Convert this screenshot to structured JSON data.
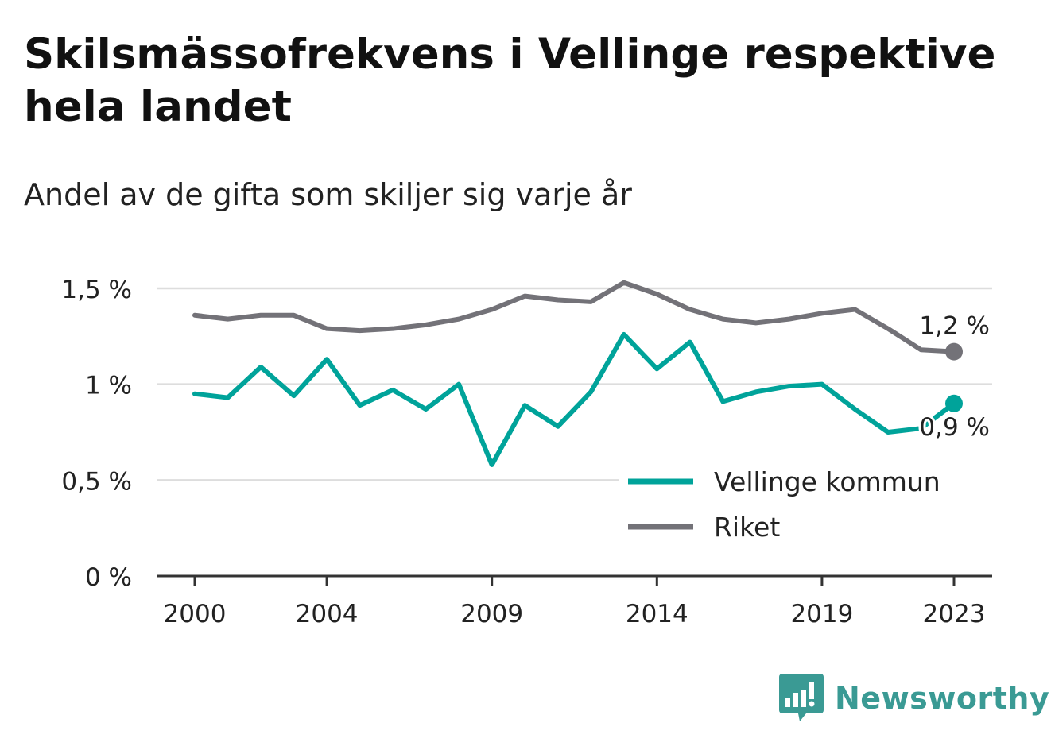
{
  "header": {
    "title": "Skilsmässofrekvens i Vellinge respektive hela landet",
    "subtitle": "Andel av de gifta som skiljer sig varje år"
  },
  "brand": {
    "name": "Newsworthy",
    "icon": "newsworthy-logo-icon",
    "color": "#3a9a94"
  },
  "chart_data": {
    "type": "line",
    "title": "Skilsmässofrekvens i Vellinge respektive hela landet",
    "subtitle": "Andel av de gifta som skiljer sig varje år",
    "xlabel": "",
    "ylabel": "",
    "x": [
      2000,
      2001,
      2002,
      2003,
      2004,
      2005,
      2006,
      2007,
      2008,
      2009,
      2010,
      2011,
      2012,
      2013,
      2014,
      2015,
      2016,
      2017,
      2018,
      2019,
      2020,
      2021,
      2022,
      2023
    ],
    "x_ticks": [
      2000,
      2004,
      2009,
      2014,
      2019,
      2023
    ],
    "x_tick_labels": [
      "2000",
      "2004",
      "2009",
      "2014",
      "2019",
      "2023"
    ],
    "ylim": [
      0,
      1.5
    ],
    "y_ticks": [
      0,
      0.5,
      1,
      1.5
    ],
    "y_tick_labels": [
      "0 %",
      "0,5 %",
      "1 %",
      "1,5 %"
    ],
    "grid": true,
    "legend_position": "bottom-right",
    "series": [
      {
        "name": "Vellinge kommun",
        "color": "#00a39a",
        "values": [
          0.95,
          0.93,
          1.09,
          0.94,
          1.13,
          0.89,
          0.97,
          0.87,
          1.0,
          0.58,
          0.89,
          0.78,
          0.96,
          1.26,
          1.08,
          1.22,
          0.91,
          0.96,
          0.99,
          1.0,
          0.87,
          0.75,
          0.77,
          0.9
        ],
        "end_label": "0,9 %"
      },
      {
        "name": "Riket",
        "color": "#737278",
        "values": [
          1.36,
          1.34,
          1.36,
          1.36,
          1.29,
          1.28,
          1.29,
          1.31,
          1.34,
          1.39,
          1.46,
          1.44,
          1.43,
          1.53,
          1.47,
          1.39,
          1.34,
          1.32,
          1.34,
          1.37,
          1.39,
          1.29,
          1.18,
          1.17
        ],
        "end_label": "1,2 %"
      }
    ]
  }
}
